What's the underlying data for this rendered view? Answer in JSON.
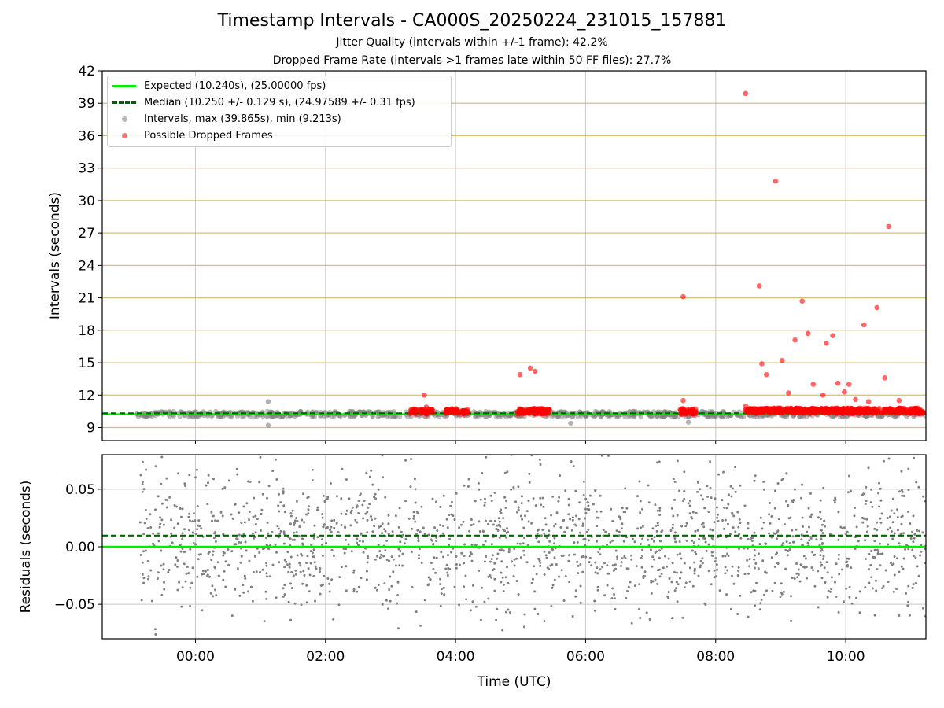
{
  "figure": {
    "title": "Timestamp Intervals - CA000S_20250224_231015_157881",
    "subtitle_jitter": "Jitter Quality (intervals within +/-1 frame): 42.2%",
    "subtitle_dropped": "Dropped Frame Rate (intervals >1 frames late within 50 FF files): 27.7%"
  },
  "colors": {
    "expected_line": "#00ee00",
    "median_line": "#006400",
    "intervals_points": "#808080",
    "dropped_points": "#ff0000",
    "h_gridlines": "#d4c07a",
    "v_gridlines": "#c8c8c8"
  },
  "chart_data": [
    {
      "type": "scatter",
      "panel": "top",
      "ylabel": "Intervals (seconds)",
      "ylim": [
        7.8,
        42
      ],
      "yticks": [
        9,
        12,
        15,
        18,
        21,
        24,
        27,
        30,
        33,
        36,
        39,
        42
      ],
      "xlim_hours": [
        -1.433,
        11.233
      ],
      "xticks": [
        "00:00",
        "02:00",
        "04:00",
        "06:00",
        "08:00",
        "10:00"
      ],
      "xtick_hours": [
        0,
        2,
        4,
        6,
        8,
        10
      ],
      "grid": "on",
      "legend_placement": "top-left",
      "legend": [
        "Expected (10.240s), (25.00000 fps)",
        "Median (10.250 +/- 0.129 s), (24.97589 +/- 0.31 fps)",
        "Intervals, max (39.865s), min (9.213s)",
        "Possible Dropped Frames"
      ],
      "expected_interval_s": 10.24,
      "median_interval_s": 10.25,
      "intervals_band": {
        "x_hours": [
          -0.93,
          11.233
        ],
        "y_center": 10.25,
        "y_spread": 0.25
      },
      "interval_outliers": [
        {
          "x": 1.12,
          "y": 11.4
        },
        {
          "x": 1.12,
          "y": 9.2
        },
        {
          "x": 7.58,
          "y": 9.5
        },
        {
          "x": 5.77,
          "y": 9.4
        }
      ],
      "dropped_clusters": [
        {
          "x_range": [
            3.3,
            3.4
          ],
          "y": 10.45
        },
        {
          "x_range": [
            3.45,
            3.65
          ],
          "y": 10.45
        },
        {
          "x_range": [
            3.85,
            4.05
          ],
          "y": 10.45
        },
        {
          "x_range": [
            4.1,
            4.2
          ],
          "y": 10.45
        },
        {
          "x_range": [
            4.95,
            5.45
          ],
          "y": 10.45
        },
        {
          "x_range": [
            7.45,
            7.7
          ],
          "y": 10.45
        },
        {
          "x_range": [
            8.45,
            11.2
          ],
          "y": 10.5
        }
      ],
      "dropped_points": [
        {
          "x": 3.52,
          "y": 12.0
        },
        {
          "x": 3.55,
          "y": 10.9
        },
        {
          "x": 4.99,
          "y": 13.9
        },
        {
          "x": 5.15,
          "y": 14.5
        },
        {
          "x": 5.22,
          "y": 14.2
        },
        {
          "x": 7.5,
          "y": 21.1
        },
        {
          "x": 7.5,
          "y": 11.5
        },
        {
          "x": 8.46,
          "y": 39.9
        },
        {
          "x": 8.46,
          "y": 11.0
        },
        {
          "x": 8.67,
          "y": 22.1
        },
        {
          "x": 8.71,
          "y": 14.9
        },
        {
          "x": 8.78,
          "y": 13.9
        },
        {
          "x": 8.92,
          "y": 31.8
        },
        {
          "x": 9.02,
          "y": 15.2
        },
        {
          "x": 9.12,
          "y": 12.2
        },
        {
          "x": 9.22,
          "y": 17.1
        },
        {
          "x": 9.33,
          "y": 20.7
        },
        {
          "x": 9.42,
          "y": 17.7
        },
        {
          "x": 9.5,
          "y": 13.0
        },
        {
          "x": 9.65,
          "y": 12.0
        },
        {
          "x": 9.7,
          "y": 16.8
        },
        {
          "x": 9.8,
          "y": 17.5
        },
        {
          "x": 9.88,
          "y": 13.1
        },
        {
          "x": 9.98,
          "y": 12.3
        },
        {
          "x": 10.05,
          "y": 13.0
        },
        {
          "x": 10.15,
          "y": 11.6
        },
        {
          "x": 10.28,
          "y": 18.5
        },
        {
          "x": 10.35,
          "y": 11.4
        },
        {
          "x": 10.48,
          "y": 20.1
        },
        {
          "x": 10.6,
          "y": 13.6
        },
        {
          "x": 10.66,
          "y": 27.6
        },
        {
          "x": 10.82,
          "y": 11.5
        }
      ]
    },
    {
      "type": "scatter",
      "panel": "bottom",
      "xlabel": "Time (UTC)",
      "ylabel": "Residuals (seconds)",
      "ylim": [
        -0.08,
        0.08
      ],
      "yticks": [
        -0.05,
        0.0,
        0.05
      ],
      "ytick_labels": [
        "−0.05",
        "0.00",
        "0.05"
      ],
      "xlim_hours": [
        -1.433,
        11.233
      ],
      "xticks": [
        "00:00",
        "02:00",
        "04:00",
        "06:00",
        "08:00",
        "10:00"
      ],
      "xtick_hours": [
        0,
        2,
        4,
        6,
        8,
        10
      ],
      "grid": "on",
      "expected_residual": 0.0,
      "median_residual": 0.0097,
      "residual_cloud": {
        "x_hours": [
          -0.85,
          11.233
        ],
        "y_range": [
          -0.08,
          0.08
        ]
      }
    }
  ]
}
